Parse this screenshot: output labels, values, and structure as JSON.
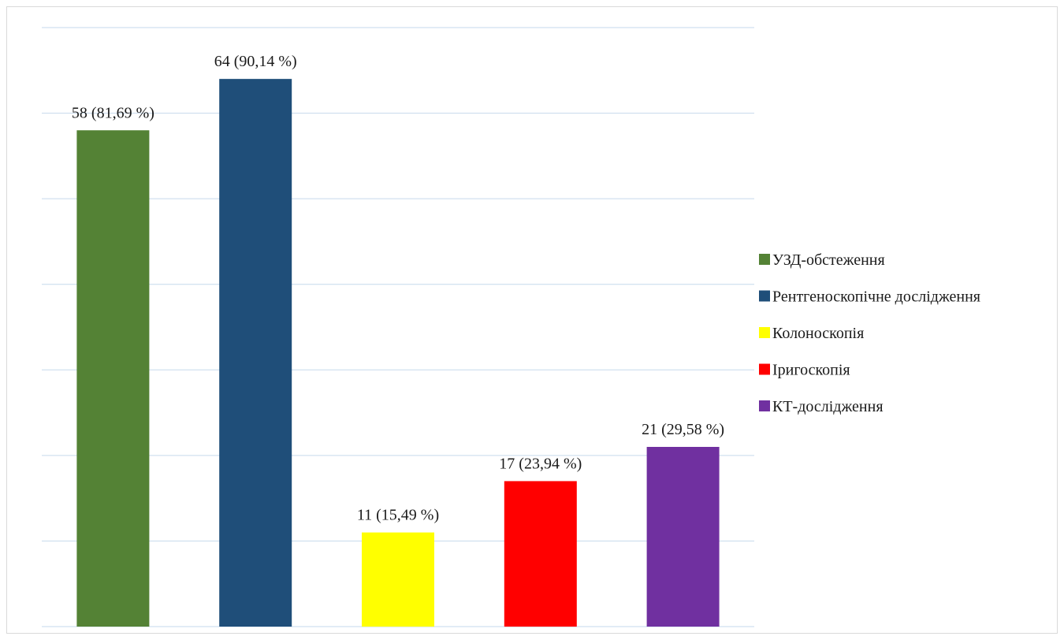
{
  "chart_data": {
    "type": "bar",
    "title": "",
    "xlabel": "",
    "ylabel": "",
    "ylim": [
      0,
      70
    ],
    "grid": true,
    "legend_position": "right",
    "categories": [
      "УЗД-обстеження",
      "Рентгеноскопічне дослідження",
      "Колоноскопія",
      "Іригоскопія",
      "КТ-дослідження"
    ],
    "values": [
      58,
      64,
      11,
      17,
      21
    ],
    "percentages": [
      81.69,
      90.14,
      15.49,
      23.94,
      29.58
    ],
    "data_labels": [
      "58 (81,69 %)",
      "64 (90,14 %)",
      "11 (15,49 %)",
      "17 (23,94 %)",
      "21 (29,58 %)"
    ],
    "colors": [
      "#548235",
      "#1f4e79",
      "#ffff00",
      "#ff0000",
      "#7030a0"
    ],
    "gridline_color": "#c6d9ec",
    "legend": [
      {
        "label": "УЗД-обстеження",
        "color": "#548235"
      },
      {
        "label": "Рентгеноскопічне дослідження",
        "color": "#1f4e79"
      },
      {
        "label": "Колоноскопія",
        "color": "#ffff00"
      },
      {
        "label": "Іригоскопія",
        "color": "#ff0000"
      },
      {
        "label": "КТ-дослідження",
        "color": "#7030a0"
      }
    ]
  }
}
